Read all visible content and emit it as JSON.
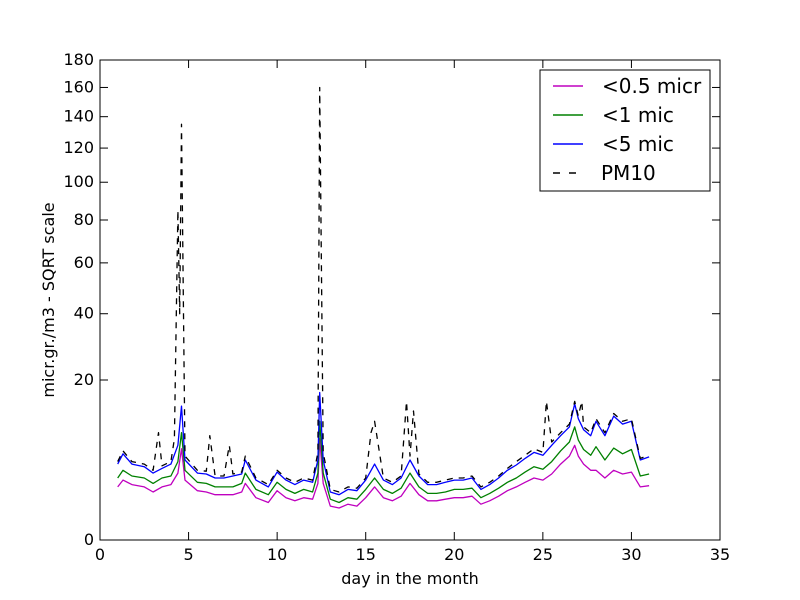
{
  "chart_data": {
    "type": "line",
    "title": "",
    "xlabel": "day in the month",
    "ylabel": "micr.gr./m3 - SQRT scale",
    "xlim": [
      0,
      35
    ],
    "ylim": [
      0,
      180
    ],
    "yscale": "sqrt",
    "grid": false,
    "legend_position": "top-right",
    "xticks": [
      0,
      5,
      10,
      15,
      20,
      25,
      30,
      35
    ],
    "yticks": [
      0,
      20,
      40,
      60,
      80,
      100,
      120,
      140,
      160,
      180
    ],
    "series": [
      {
        "name": "<0.5 micr",
        "color": "#bf00bf",
        "dash": "solid",
        "x": [
          1,
          1.3,
          1.8,
          2.5,
          3,
          3.5,
          4,
          4.4,
          4.6,
          4.8,
          5.5,
          6,
          6.5,
          7,
          7.5,
          8,
          8.2,
          8.8,
          9.5,
          10,
          10.5,
          11,
          11.5,
          12,
          12.3,
          12.4,
          12.6,
          13,
          13.5,
          14,
          14.5,
          15,
          15.5,
          16,
          16.5,
          17,
          17.5,
          18,
          18.5,
          19,
          19.5,
          20,
          20.5,
          21,
          21.5,
          22,
          22.5,
          23,
          23.5,
          24,
          24.5,
          25,
          25.5,
          26,
          26.5,
          26.8,
          27,
          27.3,
          27.7,
          28,
          28.5,
          29,
          29.5,
          30,
          30.5,
          31
        ],
        "y": [
          2.2,
          2.8,
          2.4,
          2.2,
          1.8,
          2.2,
          2.4,
          3.5,
          6.5,
          2.8,
          1.9,
          1.8,
          1.6,
          1.6,
          1.6,
          1.8,
          2.5,
          1.4,
          1.1,
          1.9,
          1.4,
          1.2,
          1.4,
          1.3,
          2.5,
          8.0,
          2.5,
          0.9,
          0.8,
          1.0,
          0.9,
          1.4,
          2.2,
          1.4,
          1.2,
          1.5,
          2.5,
          1.6,
          1.2,
          1.2,
          1.3,
          1.4,
          1.4,
          1.5,
          1.0,
          1.2,
          1.5,
          1.9,
          2.2,
          2.6,
          3.0,
          2.8,
          3.4,
          4.5,
          5.5,
          7.0,
          5.5,
          4.5,
          3.8,
          3.8,
          3.0,
          3.8,
          3.4,
          3.6,
          2.2,
          2.3
        ]
      },
      {
        "name": "<1 mic",
        "color": "#008000",
        "dash": "solid",
        "x": [
          1,
          1.3,
          1.8,
          2.5,
          3,
          3.5,
          4,
          4.4,
          4.6,
          4.8,
          5.5,
          6,
          6.5,
          7,
          7.5,
          8,
          8.2,
          8.8,
          9.5,
          10,
          10.5,
          11,
          11.5,
          12,
          12.3,
          12.4,
          12.6,
          13,
          13.5,
          14,
          14.5,
          15,
          15.5,
          16,
          16.5,
          17,
          17.5,
          18,
          18.5,
          19,
          19.5,
          20,
          20.5,
          21,
          21.5,
          22,
          22.5,
          23,
          23.5,
          24,
          24.5,
          25,
          25.5,
          26,
          26.5,
          26.8,
          27,
          27.3,
          27.7,
          28,
          28.5,
          29,
          29.5,
          30,
          30.5,
          31
        ],
        "y": [
          3.0,
          3.8,
          3.2,
          3.0,
          2.5,
          3.0,
          3.2,
          4.8,
          9.0,
          3.8,
          2.6,
          2.5,
          2.2,
          2.2,
          2.2,
          2.5,
          3.5,
          2.0,
          1.6,
          2.6,
          2.0,
          1.7,
          2.0,
          1.8,
          3.5,
          11.0,
          3.5,
          1.3,
          1.1,
          1.4,
          1.3,
          2.0,
          3.0,
          2.0,
          1.7,
          2.1,
          3.5,
          2.2,
          1.7,
          1.7,
          1.8,
          2.0,
          2.0,
          2.1,
          1.4,
          1.7,
          2.1,
          2.6,
          3.0,
          3.6,
          4.2,
          3.9,
          4.8,
          6.2,
          7.5,
          10.0,
          7.8,
          6.4,
          5.6,
          6.8,
          5.0,
          6.6,
          5.8,
          6.4,
          3.2,
          3.4
        ]
      },
      {
        "name": "<5 mic",
        "color": "#0000ff",
        "dash": "solid",
        "x": [
          1,
          1.3,
          1.8,
          2.5,
          3,
          3.5,
          4,
          4.4,
          4.6,
          4.8,
          5.5,
          6,
          6.5,
          7,
          7.5,
          8,
          8.2,
          8.8,
          9.5,
          10,
          10.5,
          11,
          11.5,
          12,
          12.3,
          12.4,
          12.6,
          13,
          13.5,
          14,
          14.5,
          15,
          15.5,
          16,
          16.5,
          17,
          17.5,
          18,
          18.5,
          19,
          19.5,
          20,
          20.5,
          21,
          21.5,
          22,
          22.5,
          23,
          23.5,
          24,
          24.5,
          25,
          25.5,
          26,
          26.5,
          26.8,
          27,
          27.3,
          27.7,
          28,
          28.5,
          29,
          29.5,
          30,
          30.5,
          31
        ],
        "y": [
          4.5,
          5.8,
          4.5,
          4.2,
          3.5,
          4.0,
          4.5,
          7.0,
          14.0,
          5.0,
          3.5,
          3.4,
          3.0,
          3.0,
          3.2,
          3.4,
          5.0,
          2.8,
          2.2,
          3.6,
          2.8,
          2.4,
          2.8,
          2.6,
          5.0,
          17.0,
          5.0,
          1.8,
          1.6,
          2.0,
          1.9,
          2.8,
          4.5,
          2.8,
          2.4,
          3.0,
          5.0,
          3.2,
          2.4,
          2.4,
          2.6,
          2.8,
          2.8,
          3.0,
          2.0,
          2.4,
          3.0,
          3.8,
          4.4,
          5.2,
          6.0,
          5.6,
          7.0,
          8.5,
          10.0,
          14.5,
          11.5,
          9.5,
          8.5,
          11.0,
          8.5,
          12.0,
          10.5,
          11.0,
          5.0,
          5.4
        ]
      },
      {
        "name": "PM10",
        "color": "#000000",
        "dash": "dashed",
        "x": [
          1,
          1.3,
          1.8,
          2.5,
          3,
          3.3,
          3.5,
          4,
          4.2,
          4.4,
          4.5,
          4.6,
          4.8,
          5.5,
          6,
          6.2,
          6.5,
          7,
          7.3,
          7.5,
          8,
          8.2,
          8.8,
          9.5,
          10,
          10.5,
          11,
          11.5,
          12,
          12.3,
          12.4,
          12.6,
          13,
          13.5,
          14,
          14.5,
          15,
          15.3,
          15.5,
          16,
          16.5,
          17,
          17.3,
          17.5,
          17.7,
          18,
          18.5,
          19,
          19.5,
          20,
          20.5,
          21,
          21.5,
          22,
          22.5,
          23,
          23.5,
          24,
          24.5,
          25,
          25.2,
          25.5,
          26,
          26.5,
          26.8,
          27,
          27.2,
          27.3,
          27.7,
          28,
          28.5,
          29,
          29.5,
          30,
          30.5,
          31
        ],
        "y": [
          4.8,
          6.2,
          4.8,
          4.5,
          3.8,
          9.0,
          4.3,
          4.8,
          8.0,
          85.0,
          40.0,
          135.0,
          5.5,
          3.8,
          3.7,
          8.5,
          3.2,
          3.2,
          7.0,
          3.4,
          3.6,
          5.5,
          3.0,
          2.4,
          3.8,
          3.0,
          2.6,
          3.0,
          2.8,
          6.0,
          160.0,
          6.0,
          2.0,
          1.8,
          2.2,
          2.1,
          3.0,
          9.0,
          11.0,
          3.0,
          2.6,
          3.2,
          15.0,
          5.5,
          13.0,
          3.4,
          2.6,
          2.6,
          2.8,
          3.0,
          3.0,
          3.2,
          2.2,
          2.6,
          3.2,
          4.0,
          4.8,
          5.6,
          6.5,
          6.0,
          15.0,
          7.5,
          9.0,
          10.5,
          15.0,
          12.0,
          15.0,
          10.0,
          9.0,
          11.5,
          9.0,
          12.5,
          11.0,
          11.5,
          5.2,
          5.6
        ]
      }
    ]
  }
}
